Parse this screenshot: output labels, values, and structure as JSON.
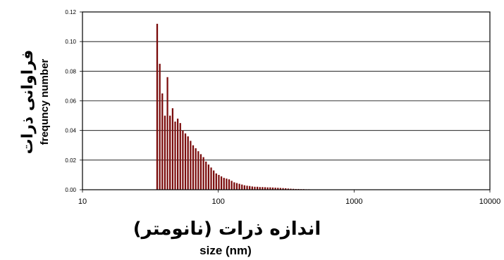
{
  "chart_data": {
    "type": "bar",
    "x_scale": "log",
    "xlim": [
      10,
      10000
    ],
    "ylim": [
      0,
      0.12
    ],
    "grid": true,
    "bar_color": "#7a0b0b",
    "x_ticks": [
      "10",
      "100",
      "1000",
      "10000"
    ],
    "y_ticks": [
      "0.00",
      "0.02",
      "0.04",
      "0.06",
      "0.08",
      "0.10",
      "0.12"
    ],
    "ylabel_fa": "فراوانی ذرات",
    "ylabel_en": "frequncy number",
    "xlabel_fa": "اندازه ذرات (نانومتر)",
    "xlabel_en": "size (nm)",
    "x": [
      35,
      36.6,
      38.2,
      39.9,
      41.7,
      43.5,
      45.5,
      47.5,
      49.6,
      51.8,
      54.1,
      56.5,
      59,
      61.7,
      64.4,
      67.3,
      70.3,
      73.4,
      76.7,
      80.1,
      83.7,
      87.4,
      91.3,
      95.3,
      99.6,
      104,
      108.6,
      113.5,
      118.5,
      123.8,
      129.3,
      135.1,
      141.1,
      147.4,
      153.9,
      160.8,
      168,
      175.4,
      183.2,
      191.4,
      199.9,
      208.8,
      218.1,
      227.8,
      237.9,
      248.5,
      259.6,
      271.2,
      283.2,
      295.8,
      309,
      322.8,
      337.1,
      352.2,
      367.8,
      384.2,
      401.3,
      419.2,
      437.9,
      457.4
    ],
    "values": [
      0.112,
      0.085,
      0.065,
      0.05,
      0.076,
      0.05,
      0.055,
      0.046,
      0.048,
      0.045,
      0.04,
      0.038,
      0.036,
      0.033,
      0.03,
      0.028,
      0.026,
      0.024,
      0.022,
      0.019,
      0.017,
      0.015,
      0.013,
      0.011,
      0.01,
      0.009,
      0.008,
      0.0075,
      0.007,
      0.006,
      0.005,
      0.0045,
      0.004,
      0.0035,
      0.003,
      0.0027,
      0.0025,
      0.0022,
      0.002,
      0.002,
      0.0018,
      0.0018,
      0.0017,
      0.0016,
      0.0016,
      0.0015,
      0.0014,
      0.0013,
      0.0012,
      0.0011,
      0.001,
      0.0008,
      0.0007,
      0.0006,
      0.0005,
      0.0005,
      0.0004,
      0.0004,
      0.0003,
      0.0003
    ]
  }
}
